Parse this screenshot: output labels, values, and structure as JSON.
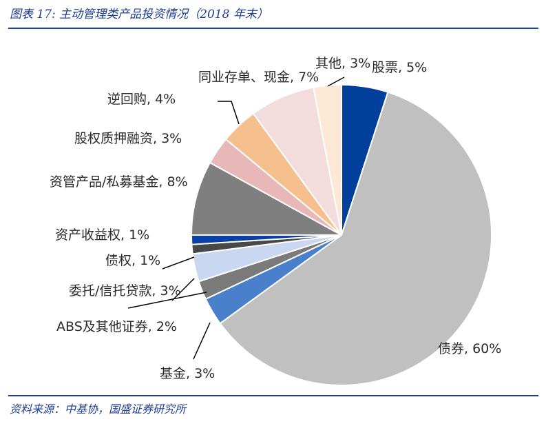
{
  "header": {
    "title": "图表 17: 主动管理类产品投资情况（2018 年末）"
  },
  "footer": {
    "source": "资料来源：中基协，国盛证券研究所"
  },
  "chart_data": {
    "type": "pie",
    "title": "图表 17: 主动管理类产品投资情况（2018 年末）",
    "slices": [
      {
        "label": "股票",
        "value": 5,
        "text": "股票, 5%",
        "color": "#003f9c"
      },
      {
        "label": "债券",
        "value": 60,
        "text": "债券, 60%",
        "color": "#c0c0c0"
      },
      {
        "label": "基金",
        "value": 3,
        "text": "基金, 3%",
        "color": "#4a7fcc"
      },
      {
        "label": "ABS及其他证券",
        "value": 2,
        "text": "ABS及其他证券, 2%",
        "color": "#7a7a7a"
      },
      {
        "label": "委托/信托贷款",
        "value": 3,
        "text": "委托/信托贷款, 3%",
        "color": "#c9d8f0"
      },
      {
        "label": "债权",
        "value": 1,
        "text": "债权, 1%",
        "color": "#484848"
      },
      {
        "label": "资产收益权",
        "value": 1,
        "text": "资产收益权, 1%",
        "color": "#0a3fa8"
      },
      {
        "label": "资管产品/私募基金",
        "value": 8,
        "text": "资管产品/私募基金, 8%",
        "color": "#7f7f7f"
      },
      {
        "label": "股权质押融资",
        "value": 3,
        "text": "股权质押融资, 3%",
        "color": "#e8b8b8"
      },
      {
        "label": "逆回购",
        "value": 4,
        "text": "逆回购, 4%",
        "color": "#f6c08e"
      },
      {
        "label": "同业存单、现金",
        "value": 7,
        "text": "同业存单、现金, 7%",
        "color": "#f2dcdc"
      },
      {
        "label": "其他",
        "value": 3,
        "text": "其他, 3%",
        "color": "#fde8d6"
      }
    ]
  }
}
